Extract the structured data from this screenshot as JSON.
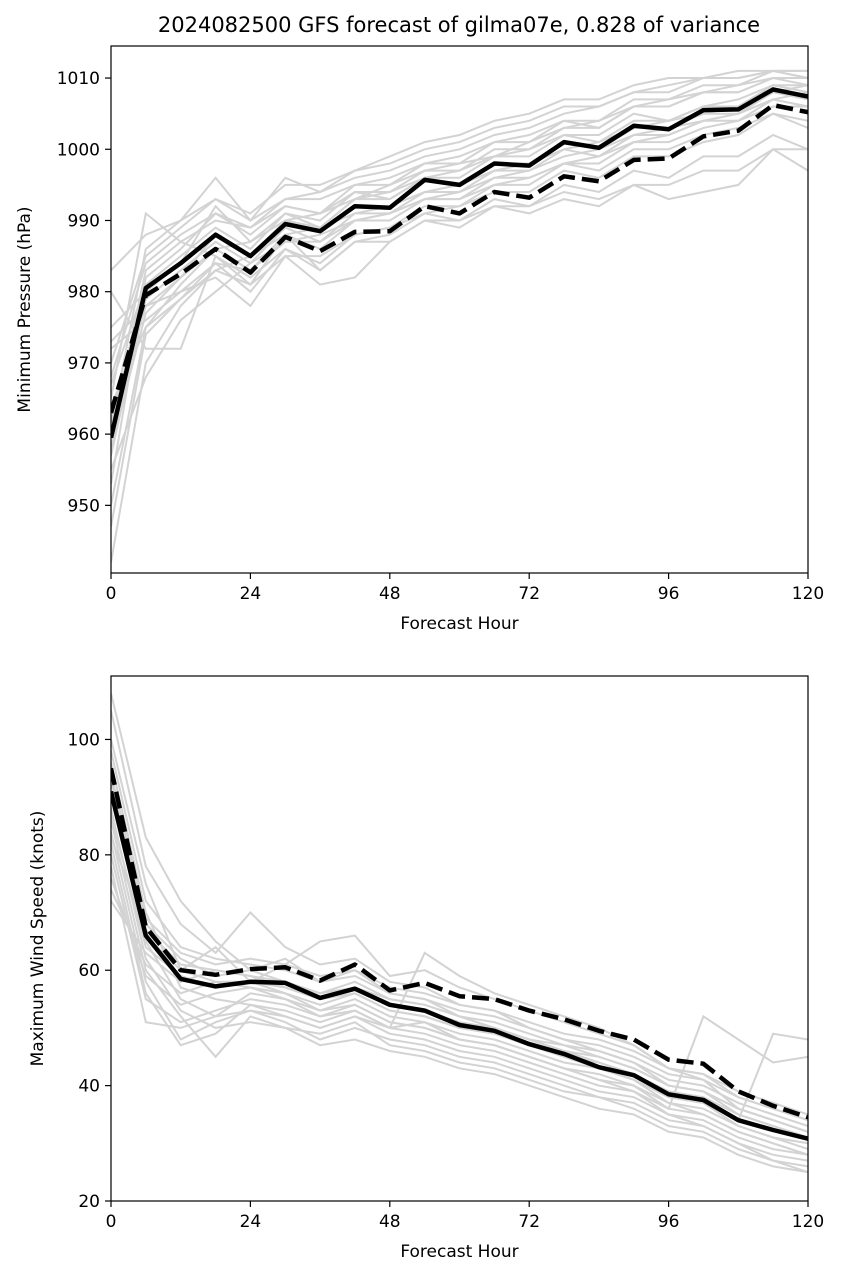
{
  "title": "2024082500 GFS forecast of gilma07e, 0.828 of variance",
  "colors": {
    "members": "#d3d3d3",
    "main": "#000000"
  },
  "chart_data": [
    {
      "type": "line",
      "xlabel": "Forecast Hour",
      "ylabel": "Minimum Pressure (hPa)",
      "xlim": [
        0,
        120
      ],
      "ylim": [
        940.5,
        1014.5
      ],
      "xticks": [
        0,
        24,
        48,
        72,
        96,
        120
      ],
      "yticks": [
        950,
        960,
        970,
        980,
        990,
        1000,
        1010
      ],
      "x": [
        0,
        6,
        12,
        18,
        24,
        30,
        36,
        42,
        48,
        54,
        60,
        66,
        72,
        78,
        84,
        90,
        96,
        102,
        108,
        114,
        120
      ],
      "series": [
        {
          "style": "solid",
          "values": [
            959.5,
            980.5,
            984,
            988,
            985,
            989.5,
            988.5,
            992,
            991.8,
            995.7,
            995,
            998,
            997.7,
            1001,
            1000.2,
            1003.3,
            1002.8,
            1005.5,
            1005.6,
            1008.4,
            1007.4
          ]
        },
        {
          "style": "dashed",
          "values": [
            963,
            979.5,
            982.5,
            986,
            982.7,
            987.7,
            985.7,
            988.4,
            988.5,
            992,
            991,
            994,
            993.2,
            996.2,
            995.5,
            998.5,
            998.7,
            1001.8,
            1002.6,
            1006.2,
            1005.2
          ]
        }
      ],
      "members": [
        [
          942,
          970,
          978,
          983,
          985,
          988,
          989,
          991,
          992,
          994,
          995,
          997,
          998,
          1000,
          1001,
          1003,
          1004,
          1005,
          1006,
          1008,
          1009
        ],
        [
          950,
          975,
          981,
          986,
          987,
          990,
          991,
          993,
          995,
          997,
          998,
          999,
          1001,
          1003,
          1004,
          1006,
          1007,
          1008,
          1009,
          1010,
          1010
        ],
        [
          955,
          968,
          976,
          980,
          984,
          987,
          988,
          990,
          991,
          993,
          994,
          996,
          997,
          999,
          1000,
          1002,
          1003,
          1004,
          1005,
          1007,
          1008
        ],
        [
          960,
          983,
          987,
          990,
          989,
          992,
          991,
          994,
          994,
          997,
          997,
          1000,
          1000,
          1002,
          1002,
          1005,
          1004,
          1006,
          1007,
          1009,
          1008
        ],
        [
          965,
          991,
          987,
          985,
          982,
          986,
          984,
          988,
          989,
          991,
          992,
          995,
          996,
          998,
          999,
          1001,
          1002,
          1004,
          1005,
          1007,
          1006
        ],
        [
          970,
          985,
          989,
          993,
          990,
          993,
          994,
          996,
          997,
          999,
          1000,
          1002,
          1003,
          1005,
          1006,
          1008,
          1009,
          1010,
          1010,
          1011,
          1011
        ],
        [
          975,
          980,
          984,
          992,
          987,
          991,
          990,
          994,
          993,
          996,
          996,
          999,
          999,
          1002,
          1001,
          1004,
          1004,
          1006,
          1006,
          1009,
          1009
        ],
        [
          980,
          972,
          972,
          985,
          981,
          988,
          983,
          987,
          988,
          991,
          990,
          993,
          992,
          995,
          994,
          997,
          996,
          999,
          999,
          1002,
          1000
        ],
        [
          983,
          988,
          990,
          996,
          990,
          996,
          994,
          997,
          999,
          1001,
          1002,
          1004,
          1005,
          1007,
          1007,
          1009,
          1010,
          1010,
          1011,
          1011,
          1011
        ],
        [
          958,
          977,
          982,
          988,
          985,
          990,
          989,
          993,
          994,
          996,
          997,
          999,
          1000,
          1003,
          1003,
          1006,
          1006,
          1008,
          1008,
          1010,
          1010
        ],
        [
          962,
          978,
          980,
          982,
          978,
          985,
          981,
          982,
          987,
          990,
          990,
          992,
          992,
          994,
          993,
          995,
          993,
          994,
          995,
          1000,
          1000
        ],
        [
          967,
          981,
          985,
          989,
          986,
          991,
          989,
          993,
          993,
          996,
          995,
          998,
          998,
          1001,
          1000,
          1003,
          1003,
          1005,
          1005,
          1008,
          1007
        ],
        [
          972,
          976,
          980,
          984,
          980,
          986,
          983,
          987,
          987,
          990,
          989,
          992,
          991,
          993,
          992,
          995,
          995,
          997,
          997,
          1000,
          997
        ],
        [
          947,
          974,
          979,
          984,
          983,
          987,
          987,
          990,
          991,
          993,
          993,
          996,
          996,
          998,
          998,
          1001,
          1001,
          1003,
          1004,
          1006,
          1006
        ],
        [
          953,
          982,
          986,
          991,
          988,
          992,
          991,
          995,
          995,
          998,
          998,
          1001,
          1001,
          1004,
          1003,
          1006,
          1006,
          1008,
          1008,
          1010,
          1009
        ],
        [
          957,
          979,
          983,
          987,
          984,
          989,
          987,
          991,
          991,
          994,
          994,
          997,
          997,
          1000,
          999,
          1002,
          1002,
          1004,
          1004,
          1007,
          1006
        ],
        [
          968,
          984,
          988,
          991,
          989,
          993,
          993,
          995,
          996,
          998,
          999,
          1001,
          1002,
          1004,
          1004,
          1007,
          1007,
          1009,
          1009,
          1011,
          1010
        ],
        [
          973,
          978,
          982,
          986,
          983,
          988,
          986,
          990,
          990,
          993,
          993,
          995,
          995,
          998,
          997,
          1000,
          1000,
          1002,
          1003,
          1005,
          1004
        ],
        [
          961,
          986,
          990,
          993,
          991,
          995,
          995,
          997,
          998,
          1000,
          1001,
          1003,
          1004,
          1006,
          1006,
          1008,
          1008,
          1010,
          1010,
          1011,
          1010
        ],
        [
          964,
          975,
          979,
          983,
          981,
          985,
          985,
          988,
          989,
          992,
          992,
          994,
          994,
          997,
          996,
          999,
          999,
          1001,
          1002,
          1005,
          1003
        ]
      ]
    },
    {
      "type": "line",
      "xlabel": "Forecast Hour",
      "ylabel": "Maximum Wind Speed (knots)",
      "xlim": [
        0,
        120
      ],
      "ylim": [
        20,
        111
      ],
      "xticks": [
        0,
        24,
        48,
        72,
        96,
        120
      ],
      "yticks": [
        20,
        40,
        60,
        80,
        100
      ],
      "x": [
        0,
        6,
        12,
        18,
        24,
        30,
        36,
        42,
        48,
        54,
        60,
        66,
        72,
        78,
        84,
        90,
        96,
        102,
        108,
        114,
        120
      ],
      "series": [
        {
          "style": "solid",
          "values": [
            91,
            66,
            58.5,
            57.2,
            58,
            57.8,
            55.2,
            56.8,
            54,
            53,
            50.5,
            49.5,
            47.2,
            45.5,
            43.2,
            41.8,
            38.5,
            37.5,
            34,
            32.3,
            30.8
          ]
        },
        {
          "style": "dashed",
          "values": [
            95,
            67.5,
            60,
            59.2,
            60.2,
            60.5,
            58.2,
            61,
            56.5,
            57.8,
            55.5,
            55,
            53,
            51.5,
            49.5,
            48,
            44.5,
            43.8,
            39,
            36.5,
            34.5
          ]
        }
      ],
      "members": [
        [
          108,
          83,
          72,
          65,
          60,
          62,
          58,
          60,
          56,
          55,
          52,
          50,
          48,
          46,
          44,
          42,
          38,
          37,
          33,
          31,
          29
        ],
        [
          105,
          78,
          68,
          63,
          70,
          64,
          61,
          62,
          58,
          57,
          54,
          53,
          50,
          48,
          46,
          44,
          40,
          39,
          35,
          33,
          31
        ],
        [
          100,
          75,
          60,
          64,
          58,
          61,
          65,
          66,
          59,
          60,
          57,
          55,
          53,
          51,
          49,
          47,
          43,
          42,
          38,
          36,
          34
        ],
        [
          96,
          70,
          57,
          55,
          54,
          52,
          50,
          52,
          50,
          51,
          48,
          47,
          45,
          43,
          41,
          40,
          36,
          35,
          32,
          30,
          28
        ],
        [
          93,
          68,
          62,
          59,
          60,
          58,
          56,
          57,
          55,
          54,
          52,
          50,
          48,
          47,
          45,
          43,
          40,
          39,
          36,
          34,
          32
        ],
        [
          90,
          65,
          55,
          52,
          53,
          51,
          48,
          50,
          48,
          47,
          45,
          44,
          42,
          40,
          38,
          37,
          34,
          33,
          30,
          28,
          27
        ],
        [
          88,
          62,
          53,
          50,
          51,
          50,
          47,
          48,
          46,
          45,
          43,
          42,
          40,
          38,
          36,
          35,
          32,
          31,
          28,
          26,
          25
        ],
        [
          86,
          60,
          52,
          45,
          52,
          50,
          49,
          51,
          47,
          46,
          44,
          43,
          41,
          39,
          38,
          36,
          33,
          32,
          29,
          27,
          26
        ],
        [
          84,
          58,
          48,
          51,
          53,
          52,
          50,
          52,
          49,
          48,
          46,
          45,
          43,
          41,
          39,
          38,
          35,
          34,
          31,
          29,
          28
        ],
        [
          82,
          56,
          47,
          49,
          54,
          53,
          51,
          53,
          50,
          49,
          47,
          46,
          44,
          42,
          40,
          39,
          36,
          52,
          48,
          44,
          45
        ],
        [
          80,
          55,
          51,
          53,
          55,
          54,
          52,
          54,
          51,
          50,
          48,
          47,
          45,
          43,
          42,
          40,
          37,
          36,
          33,
          31,
          30
        ],
        [
          78,
          51,
          50,
          52,
          56,
          55,
          53,
          55,
          52,
          51,
          49,
          48,
          46,
          44,
          43,
          41,
          38,
          37,
          34,
          49,
          48
        ],
        [
          76,
          59,
          54,
          56,
          57,
          56,
          54,
          56,
          53,
          52,
          50,
          49,
          47,
          45,
          44,
          42,
          39,
          38,
          35,
          33,
          31
        ],
        [
          74,
          61,
          56,
          58,
          58,
          57,
          55,
          57,
          54,
          53,
          51,
          50,
          48,
          46,
          45,
          43,
          40,
          39,
          36,
          34,
          32
        ],
        [
          72,
          63,
          58,
          60,
          59,
          58,
          56,
          58,
          55,
          54,
          52,
          51,
          49,
          47,
          46,
          44,
          41,
          40,
          37,
          35,
          33
        ],
        [
          98,
          72,
          64,
          62,
          61,
          60,
          58,
          59,
          56,
          55,
          53,
          52,
          50,
          48,
          47,
          45,
          42,
          41,
          38,
          36,
          34
        ],
        [
          94,
          69,
          63,
          61,
          62,
          61,
          59,
          60,
          57,
          56,
          54,
          53,
          51,
          49,
          48,
          46,
          43,
          42,
          39,
          37,
          35
        ],
        [
          87,
          64,
          59,
          57,
          58,
          56,
          53,
          54,
          51,
          50,
          48,
          47,
          45,
          43,
          41,
          39,
          35,
          33,
          30,
          27,
          25
        ],
        [
          83,
          67,
          61,
          60,
          59,
          57,
          55,
          56,
          53,
          52,
          50,
          49,
          47,
          45,
          43,
          41,
          37,
          35,
          32,
          30,
          28
        ],
        [
          91,
          66,
          60,
          58,
          57,
          55,
          52,
          53,
          50,
          63,
          59,
          56,
          54,
          52,
          50,
          47,
          43,
          41,
          36,
          34,
          32
        ]
      ]
    }
  ]
}
